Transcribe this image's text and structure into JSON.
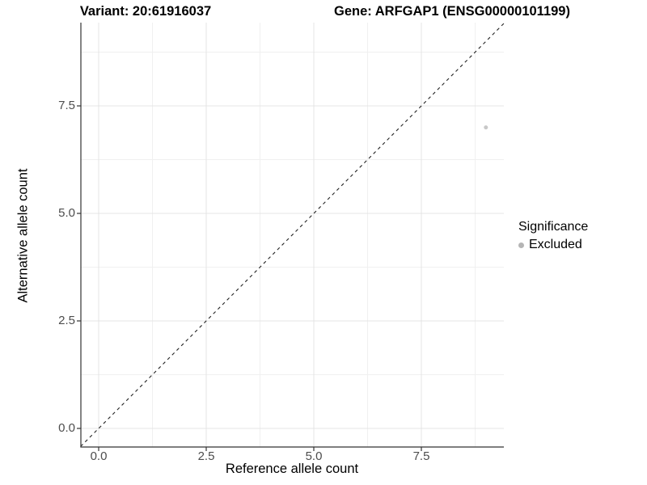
{
  "chart_data": {
    "type": "scatter",
    "title_left": "Variant: 20:61916037",
    "title_right": "Gene: ARFGAP1 (ENSG00000101199)",
    "xlabel": "Reference allele count",
    "ylabel": "Alternative allele count",
    "x_ticks": [
      0,
      2.5,
      5,
      7.5
    ],
    "x_tick_labels": [
      "0.0",
      "2.5",
      "5.0",
      "7.5"
    ],
    "y_ticks": [
      0,
      2.5,
      5,
      7.5
    ],
    "y_tick_labels": [
      "0.0",
      "2.5",
      "5.0",
      "7.5"
    ],
    "xlim": [
      -0.42,
      9.42
    ],
    "ylim": [
      -0.42,
      9.44
    ],
    "grid": {
      "major": true,
      "minor": true
    },
    "points": [
      {
        "x": 9,
        "y": 7,
        "significance": "Excluded"
      }
    ],
    "reference_line": {
      "kind": "identity-diagonal",
      "linetype": "dashed"
    },
    "legend": {
      "title": "Significance",
      "position": "right",
      "entries": [
        {
          "label": "Excluded",
          "color": "#b5b5b5"
        }
      ]
    }
  },
  "colors": {
    "background": "#ffffff",
    "axis_line": "#333333",
    "tick_label": "#4d4d4d",
    "grid_major": "#e4e4e4",
    "grid_minor": "#f0f0f0",
    "dashed_line": "#222222",
    "point": "#c8c8c8"
  }
}
